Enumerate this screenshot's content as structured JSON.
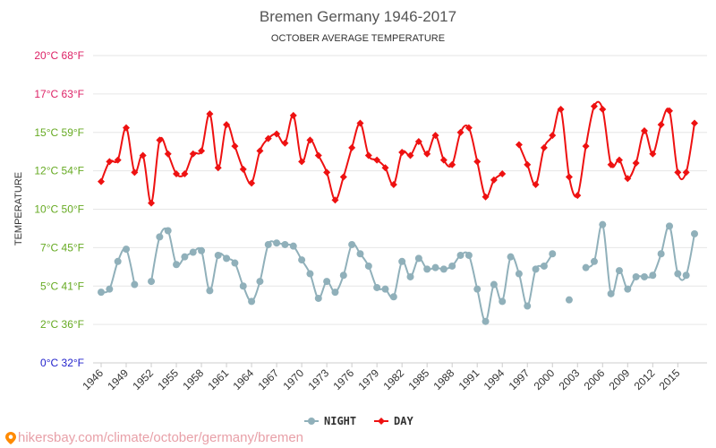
{
  "chart_data": {
    "type": "line",
    "title": "Bremen Germany 1946-2017",
    "subtitle": "OCTOBER AVERAGE TEMPERATURE",
    "ylabel": "TEMPERATURE",
    "ylim": [
      0,
      20
    ],
    "y_ticks": [
      {
        "value": 0,
        "label": "0°C 32°F",
        "color": "#2222cc"
      },
      {
        "value": 2.5,
        "label": "2°C 36°F",
        "color": "#66aa22"
      },
      {
        "value": 5,
        "label": "5°C 41°F",
        "color": "#66aa22"
      },
      {
        "value": 7.5,
        "label": "7°C 45°F",
        "color": "#66aa22"
      },
      {
        "value": 10,
        "label": "10°C 50°F",
        "color": "#66aa22"
      },
      {
        "value": 12.5,
        "label": "12°C 54°F",
        "color": "#66aa22"
      },
      {
        "value": 15,
        "label": "15°C 59°F",
        "color": "#66aa22"
      },
      {
        "value": 17.5,
        "label": "17°C 63°F",
        "color": "#dd2266"
      },
      {
        "value": 20,
        "label": "20°C 68°F",
        "color": "#dd2266"
      }
    ],
    "x_tick_labels": [
      "1946",
      "1949",
      "1952",
      "1955",
      "1958",
      "1961",
      "1964",
      "1967",
      "1970",
      "1973",
      "1976",
      "1979",
      "1982",
      "1985",
      "1988",
      "1991",
      "1994",
      "1997",
      "2000",
      "2003",
      "2006",
      "2009",
      "2012",
      "2015"
    ],
    "x": [
      1946,
      1947,
      1948,
      1949,
      1950,
      1951,
      1952,
      1953,
      1954,
      1955,
      1956,
      1957,
      1958,
      1959,
      1960,
      1961,
      1962,
      1963,
      1964,
      1965,
      1966,
      1967,
      1968,
      1969,
      1970,
      1971,
      1972,
      1973,
      1974,
      1975,
      1976,
      1977,
      1978,
      1979,
      1980,
      1981,
      1982,
      1983,
      1984,
      1985,
      1986,
      1987,
      1988,
      1989,
      1990,
      1991,
      1992,
      1993,
      1994,
      1995,
      1996,
      1997,
      1998,
      1999,
      2000,
      2001,
      2002,
      2003,
      2004,
      2005,
      2006,
      2007,
      2008,
      2009,
      2010,
      2011,
      2012,
      2013,
      2014,
      2015,
      2016,
      2017
    ],
    "series": [
      {
        "name": "NIGHT",
        "color": "#90b0ba",
        "values": [
          4.6,
          4.8,
          6.6,
          7.4,
          5.1,
          null,
          5.3,
          8.2,
          8.6,
          6.4,
          6.9,
          7.2,
          7.3,
          4.7,
          7.0,
          6.8,
          6.5,
          5.0,
          4.0,
          5.3,
          7.7,
          7.8,
          7.7,
          7.6,
          6.7,
          5.8,
          4.2,
          5.3,
          4.6,
          5.7,
          7.7,
          7.1,
          6.3,
          4.9,
          4.8,
          4.3,
          6.6,
          5.6,
          6.8,
          6.1,
          6.2,
          6.1,
          6.3,
          7.0,
          7.0,
          4.8,
          2.7,
          5.1,
          4.0,
          6.9,
          5.8,
          3.7,
          6.1,
          6.3,
          7.1,
          null,
          4.1,
          null,
          6.2,
          6.6,
          9.0,
          4.5,
          6.0,
          4.8,
          5.6,
          5.6,
          5.7,
          7.1,
          8.9,
          5.8,
          5.7,
          8.4
        ]
      },
      {
        "name": "DAY",
        "color": "#ee1111",
        "values": [
          11.8,
          13.1,
          13.2,
          15.3,
          12.4,
          13.5,
          10.4,
          14.5,
          13.6,
          12.3,
          12.3,
          13.6,
          13.8,
          16.2,
          12.7,
          15.5,
          14.1,
          12.6,
          11.7,
          13.8,
          14.6,
          14.9,
          14.3,
          16.1,
          13.1,
          14.5,
          13.5,
          12.4,
          10.6,
          12.1,
          14.0,
          15.6,
          13.5,
          13.2,
          12.7,
          11.6,
          13.7,
          13.5,
          14.4,
          13.6,
          14.8,
          13.2,
          12.9,
          15.0,
          15.3,
          13.1,
          10.8,
          11.9,
          12.3,
          null,
          14.2,
          12.9,
          11.6,
          14.0,
          14.8,
          16.5,
          12.1,
          10.9,
          14.1,
          16.7,
          16.5,
          12.9,
          13.2,
          12.0,
          13.0,
          15.1,
          13.6,
          15.5,
          16.4,
          12.4,
          12.4,
          15.6
        ]
      }
    ],
    "legend": {
      "position": "bottom",
      "items": [
        "NIGHT",
        "DAY"
      ]
    },
    "grid": true
  },
  "footer": {
    "text": "hikersbay.com/climate/october/germany/bremen",
    "pin_color": "#ff8a00"
  }
}
